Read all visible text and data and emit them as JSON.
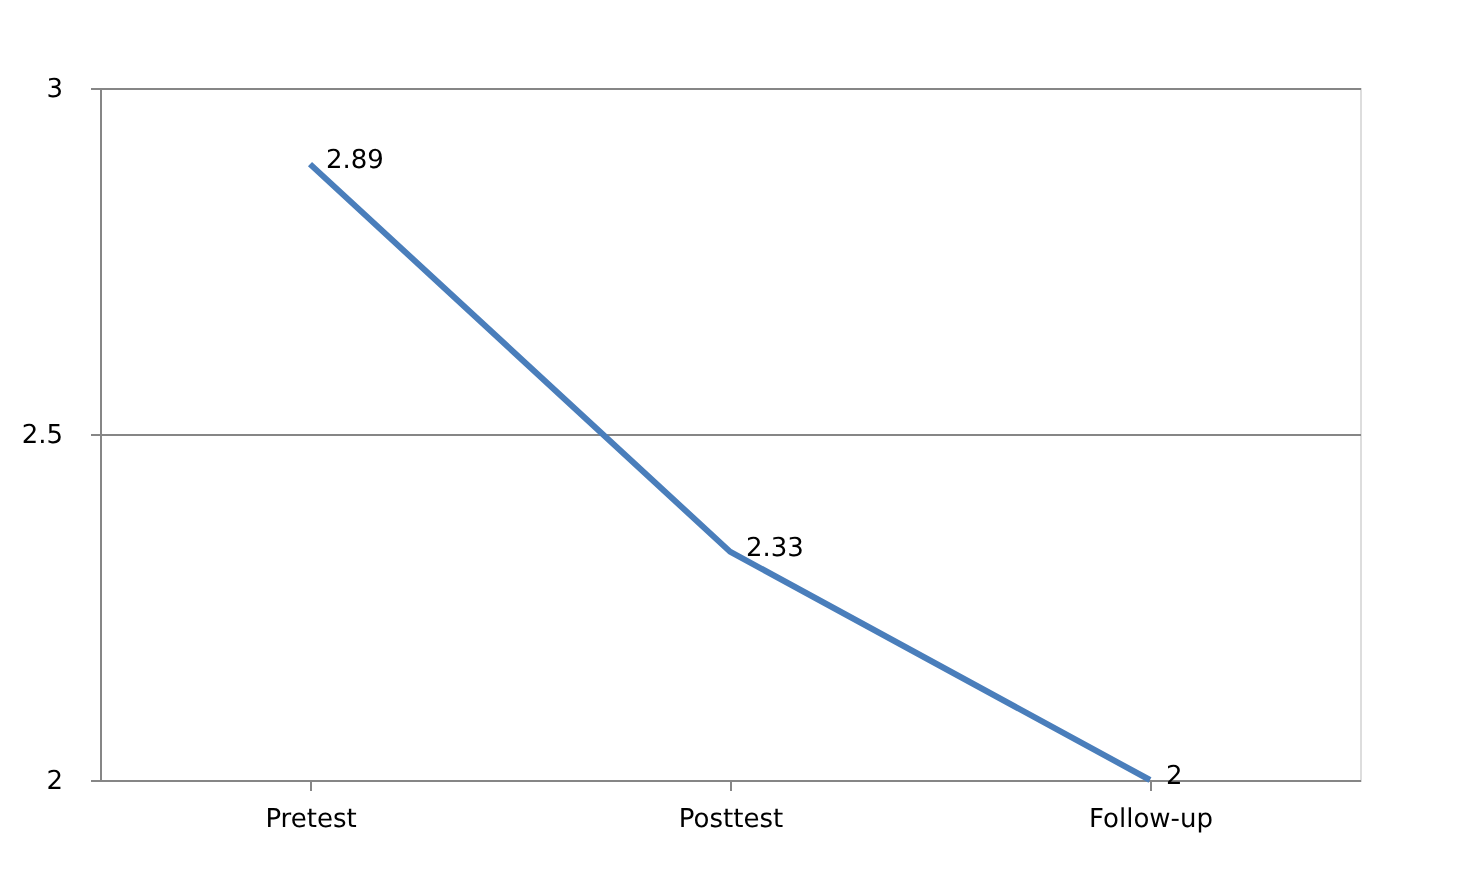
{
  "chart_data": {
    "type": "line",
    "categories": [
      "Pretest",
      "Posttest",
      "Follow-up"
    ],
    "series": [
      {
        "color": "#4a7ebb",
        "values": [
          2.89,
          2.33,
          2
        ]
      }
    ],
    "ylim": [
      2,
      3
    ],
    "yticks": [
      2,
      2.5,
      3
    ],
    "grid": "y",
    "data_labels": true,
    "legend": false,
    "marker": "none",
    "line_style": "solid"
  }
}
